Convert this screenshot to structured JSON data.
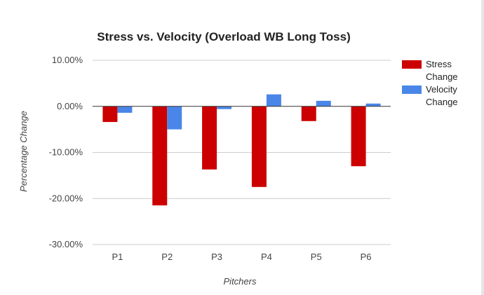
{
  "chart_data": {
    "type": "bar",
    "title": "Stress vs. Velocity (Overload WB Long Toss)",
    "xlabel": "Pitchers",
    "ylabel": "Percentage Change",
    "categories": [
      "P1",
      "P2",
      "P3",
      "P4",
      "P5",
      "P6"
    ],
    "series": [
      {
        "name": "Stress Change",
        "color": "#cc0000",
        "values": [
          -3.4,
          -21.5,
          -13.7,
          -17.5,
          -3.2,
          -13.0
        ]
      },
      {
        "name": "Velocity Change",
        "color": "#4a86e8",
        "values": [
          -1.4,
          -5.0,
          -0.6,
          2.6,
          1.2,
          0.6
        ]
      }
    ],
    "ylim": [
      -30,
      10
    ],
    "yticks": [
      10,
      0,
      -10,
      -20,
      -30
    ],
    "ytick_labels": [
      "10.00%",
      "0.00%",
      "-10.00%",
      "-20.00%",
      "-30.00%"
    ],
    "grid": true,
    "legend": "right"
  }
}
